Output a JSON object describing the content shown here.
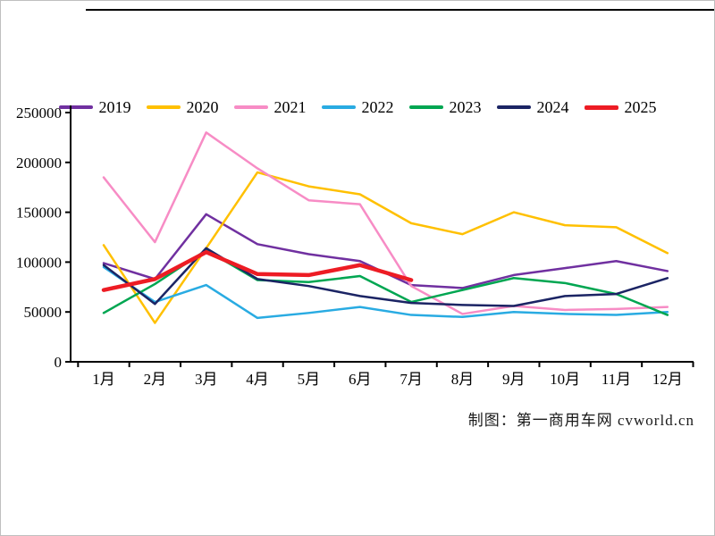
{
  "page": {
    "caption": "制图：第一商用车网 cvworld.cn"
  },
  "chart_data": {
    "type": "line",
    "title": "",
    "xlabel": "",
    "ylabel": "",
    "categories": [
      "1月",
      "2月",
      "3月",
      "4月",
      "5月",
      "6月",
      "7月",
      "8月",
      "9月",
      "10月",
      "11月",
      "12月"
    ],
    "y_ticks": [
      0,
      50000,
      100000,
      150000,
      200000,
      250000
    ],
    "ylim": [
      0,
      250000
    ],
    "grid": false,
    "legend_position": "top",
    "series": [
      {
        "name": "2019",
        "color": "#7030A0",
        "width": 2.5,
        "values": [
          99000,
          83000,
          148000,
          118000,
          108000,
          101000,
          77000,
          74000,
          87000,
          94000,
          101000,
          91000
        ]
      },
      {
        "name": "2020",
        "color": "#FFC000",
        "width": 2.5,
        "values": [
          117000,
          39000,
          114000,
          190000,
          176000,
          168000,
          139000,
          128000,
          150000,
          137000,
          135000,
          109000
        ]
      },
      {
        "name": "2021",
        "color": "#F78CC5",
        "width": 2.5,
        "values": [
          185000,
          120000,
          230000,
          194000,
          162000,
          158000,
          76000,
          48000,
          56000,
          52000,
          53000,
          55000
        ]
      },
      {
        "name": "2022",
        "color": "#29ABE2",
        "width": 2.5,
        "values": [
          95000,
          60000,
          77000,
          44000,
          49000,
          55000,
          47000,
          45000,
          50000,
          48000,
          47000,
          50000
        ]
      },
      {
        "name": "2023",
        "color": "#00A651",
        "width": 2.5,
        "values": [
          49000,
          78000,
          112000,
          82000,
          80000,
          86000,
          60000,
          72000,
          84000,
          79000,
          68000,
          47000
        ]
      },
      {
        "name": "2024",
        "color": "#1B2464",
        "width": 2.5,
        "values": [
          97000,
          58000,
          114000,
          83000,
          76000,
          66000,
          59000,
          57000,
          56000,
          66000,
          68000,
          84000
        ]
      },
      {
        "name": "2025",
        "color": "#ED1C24",
        "width": 4.5,
        "values": [
          72000,
          83000,
          110000,
          88000,
          87000,
          97000,
          82000,
          null,
          null,
          null,
          null,
          null
        ]
      }
    ]
  }
}
